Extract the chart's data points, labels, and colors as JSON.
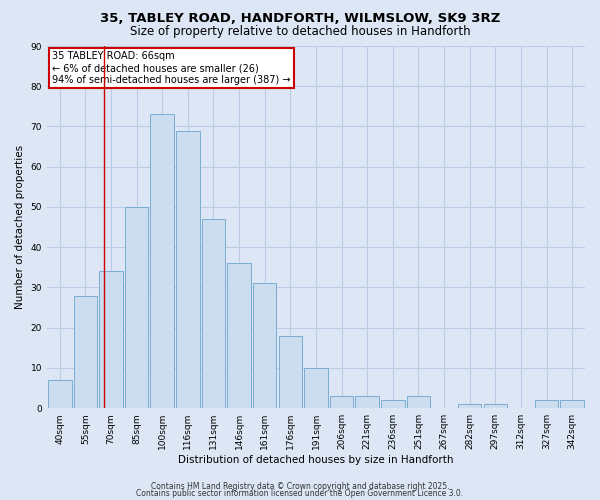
{
  "title1": "35, TABLEY ROAD, HANDFORTH, WILMSLOW, SK9 3RZ",
  "title2": "Size of property relative to detached houses in Handforth",
  "xlabel": "Distribution of detached houses by size in Handforth",
  "ylabel": "Number of detached properties",
  "categories": [
    "40sqm",
    "55sqm",
    "70sqm",
    "85sqm",
    "100sqm",
    "116sqm",
    "131sqm",
    "146sqm",
    "161sqm",
    "176sqm",
    "191sqm",
    "206sqm",
    "221sqm",
    "236sqm",
    "251sqm",
    "267sqm",
    "282sqm",
    "297sqm",
    "312sqm",
    "327sqm",
    "342sqm"
  ],
  "values": [
    7,
    28,
    34,
    50,
    73,
    69,
    47,
    36,
    31,
    18,
    10,
    3,
    3,
    2,
    3,
    0,
    1,
    1,
    0,
    2,
    2
  ],
  "bar_color": "#ccddf0",
  "bar_edge_color": "#7aadd4",
  "background_color": "#dce6f5",
  "grid_color": "#b8cce4",
  "red_line_x": 1.73,
  "annotation_text": "35 TABLEY ROAD: 66sqm\n← 6% of detached houses are smaller (26)\n94% of semi-detached houses are larger (387) →",
  "annotation_box_color": "#ffffff",
  "annotation_box_edge_color": "#cc0000",
  "ylim": [
    0,
    90
  ],
  "yticks": [
    0,
    10,
    20,
    30,
    40,
    50,
    60,
    70,
    80,
    90
  ],
  "footer1": "Contains HM Land Registry data © Crown copyright and database right 2025.",
  "footer2": "Contains public sector information licensed under the Open Government Licence 3.0.",
  "title_fontsize": 9.5,
  "subtitle_fontsize": 8.5,
  "axis_fontsize": 7.5,
  "tick_fontsize": 6.5,
  "annotation_fontsize": 7,
  "footer_fontsize": 5.5
}
